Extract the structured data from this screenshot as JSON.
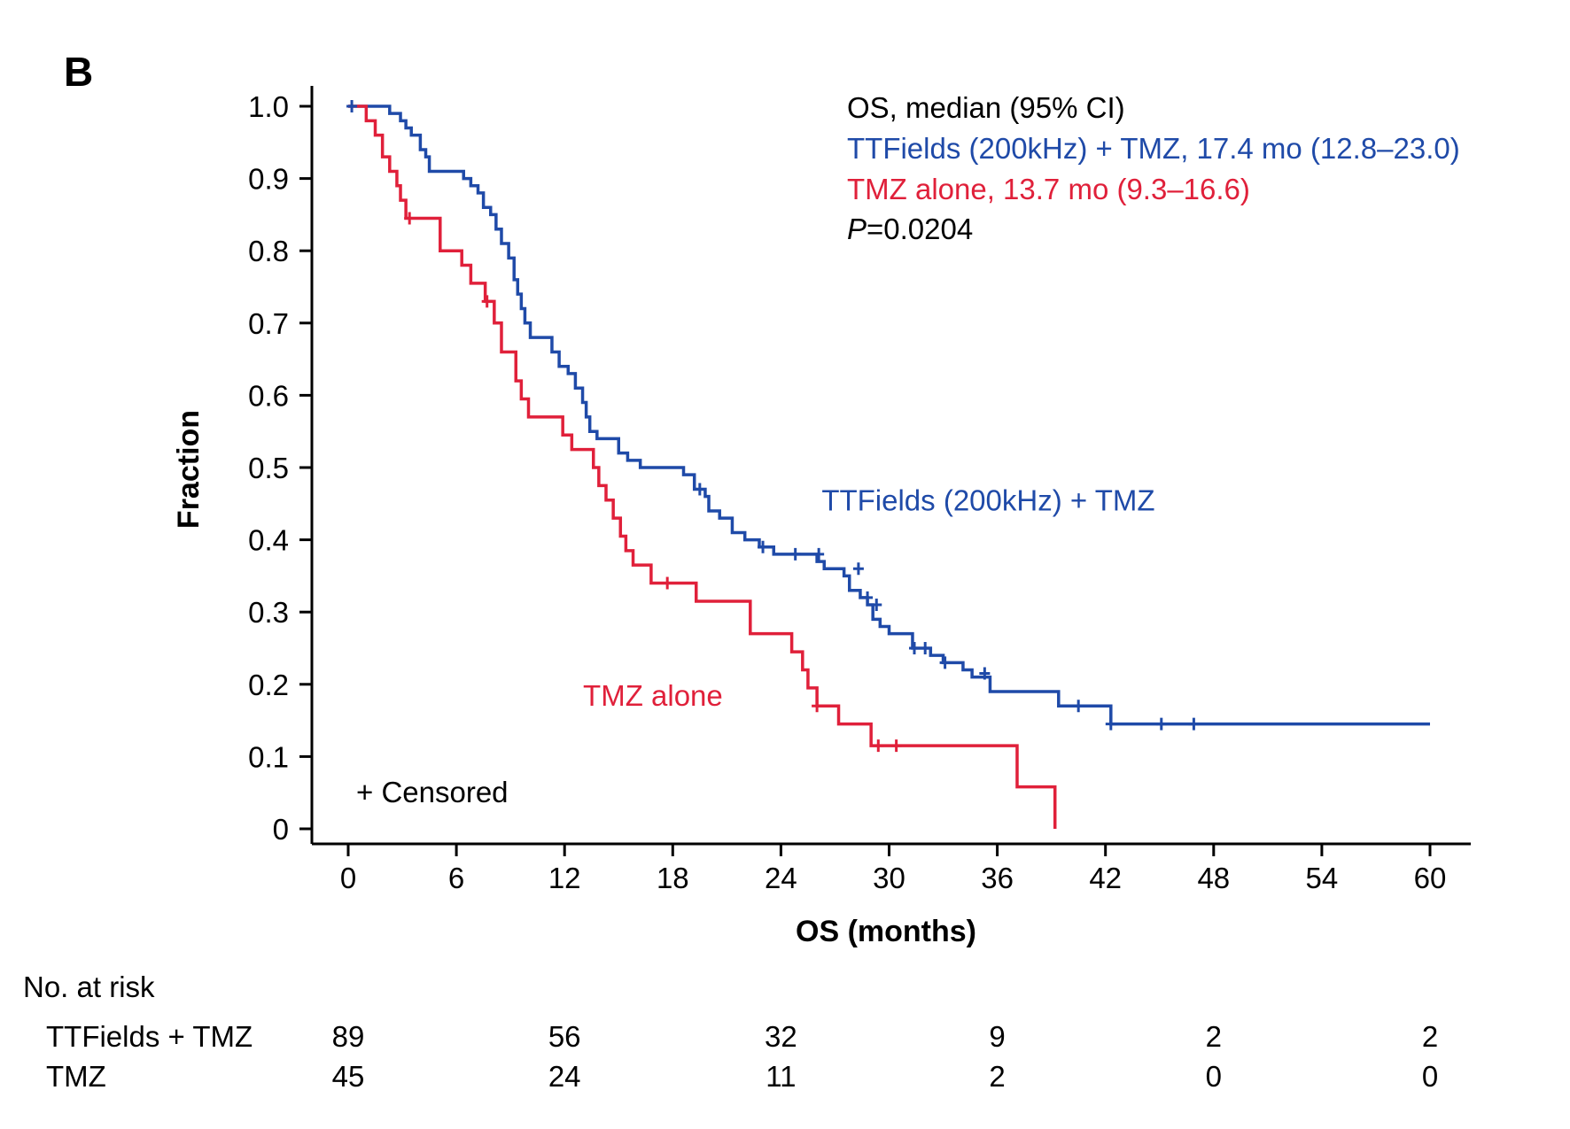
{
  "chart_data": {
    "type": "line",
    "panel_label": "B",
    "xlabel": "OS (months)",
    "ylabel": "Fraction",
    "xlim": [
      0,
      60
    ],
    "ylim": [
      0,
      1.0
    ],
    "xticks": [
      0,
      6,
      12,
      18,
      24,
      30,
      36,
      42,
      48,
      54,
      60
    ],
    "yticks": [
      0,
      0.1,
      0.2,
      0.3,
      0.4,
      0.5,
      0.6,
      0.7,
      0.8,
      0.9,
      1.0
    ],
    "ytick_labels": [
      "0",
      "0.1",
      "0.2",
      "0.3",
      "0.4",
      "0.5",
      "0.6",
      "0.7",
      "0.8",
      "0.9",
      "1.0"
    ],
    "grid": false,
    "legend_box": {
      "header": "OS, median (95% CI)",
      "entries": [
        {
          "text": "TTFields (200kHz) + TMZ, 17.4 mo (12.8–23.0)",
          "color": "#1f4aa8"
        },
        {
          "text": "TMZ alone, 13.7 mo (9.3–16.6)",
          "color": "#e0203a"
        }
      ],
      "pvalue_label": "P",
      "pvalue_text": "=0.0204"
    },
    "censored_note": "+ Censored",
    "series": [
      {
        "name": "TTFields (200kHz) + TMZ",
        "color": "#1f4aa8",
        "steps": [
          [
            0,
            1.0
          ],
          [
            2.3,
            0.99
          ],
          [
            2.9,
            0.98
          ],
          [
            3.2,
            0.97
          ],
          [
            3.5,
            0.96
          ],
          [
            4.0,
            0.94
          ],
          [
            4.3,
            0.93
          ],
          [
            4.5,
            0.91
          ],
          [
            6.4,
            0.9
          ],
          [
            6.8,
            0.89
          ],
          [
            7.2,
            0.88
          ],
          [
            7.5,
            0.86
          ],
          [
            7.9,
            0.85
          ],
          [
            8.2,
            0.83
          ],
          [
            8.5,
            0.81
          ],
          [
            8.9,
            0.79
          ],
          [
            9.2,
            0.76
          ],
          [
            9.4,
            0.74
          ],
          [
            9.6,
            0.72
          ],
          [
            9.8,
            0.7
          ],
          [
            10.1,
            0.68
          ],
          [
            11.3,
            0.66
          ],
          [
            11.7,
            0.64
          ],
          [
            12.2,
            0.63
          ],
          [
            12.6,
            0.61
          ],
          [
            13.0,
            0.59
          ],
          [
            13.2,
            0.57
          ],
          [
            13.4,
            0.55
          ],
          [
            13.8,
            0.54
          ],
          [
            15.0,
            0.52
          ],
          [
            15.5,
            0.51
          ],
          [
            16.2,
            0.5
          ],
          [
            18.6,
            0.49
          ],
          [
            19.2,
            0.47
          ],
          [
            19.8,
            0.46
          ],
          [
            20.0,
            0.44
          ],
          [
            20.6,
            0.43
          ],
          [
            21.3,
            0.41
          ],
          [
            22.0,
            0.4
          ],
          [
            22.8,
            0.39
          ],
          [
            23.6,
            0.38
          ],
          [
            26.0,
            0.37
          ],
          [
            26.4,
            0.36
          ],
          [
            27.5,
            0.35
          ],
          [
            27.8,
            0.33
          ],
          [
            28.4,
            0.32
          ],
          [
            28.8,
            0.31
          ],
          [
            29.1,
            0.29
          ],
          [
            29.5,
            0.28
          ],
          [
            30.0,
            0.27
          ],
          [
            31.3,
            0.25
          ],
          [
            32.3,
            0.24
          ],
          [
            33.0,
            0.23
          ],
          [
            34.1,
            0.22
          ],
          [
            34.6,
            0.21
          ],
          [
            35.6,
            0.19
          ],
          [
            39.4,
            0.17
          ],
          [
            42.3,
            0.145
          ],
          [
            60.0,
            0.145
          ]
        ],
        "censored": [
          [
            0.2,
            1.0
          ],
          [
            19.5,
            0.47
          ],
          [
            23.0,
            0.39
          ],
          [
            24.8,
            0.38
          ],
          [
            26.1,
            0.38
          ],
          [
            28.3,
            0.36
          ],
          [
            28.8,
            0.32
          ],
          [
            29.3,
            0.31
          ],
          [
            31.4,
            0.25
          ],
          [
            32.0,
            0.25
          ],
          [
            33.1,
            0.23
          ],
          [
            35.3,
            0.215
          ],
          [
            40.5,
            0.17
          ],
          [
            42.3,
            0.145
          ],
          [
            45.1,
            0.145
          ],
          [
            46.9,
            0.145
          ]
        ]
      },
      {
        "name": "TMZ alone",
        "color": "#e0203a",
        "steps": [
          [
            0,
            1.0
          ],
          [
            1.0,
            0.98
          ],
          [
            1.5,
            0.96
          ],
          [
            1.9,
            0.93
          ],
          [
            2.3,
            0.91
          ],
          [
            2.7,
            0.89
          ],
          [
            2.9,
            0.87
          ],
          [
            3.2,
            0.845
          ],
          [
            5.1,
            0.8
          ],
          [
            6.3,
            0.78
          ],
          [
            6.8,
            0.755
          ],
          [
            7.6,
            0.73
          ],
          [
            8.1,
            0.7
          ],
          [
            8.5,
            0.66
          ],
          [
            9.3,
            0.62
          ],
          [
            9.6,
            0.595
          ],
          [
            10.0,
            0.57
          ],
          [
            11.9,
            0.545
          ],
          [
            12.4,
            0.525
          ],
          [
            13.6,
            0.5
          ],
          [
            13.9,
            0.475
          ],
          [
            14.3,
            0.455
          ],
          [
            14.7,
            0.43
          ],
          [
            15.1,
            0.405
          ],
          [
            15.4,
            0.385
          ],
          [
            15.8,
            0.365
          ],
          [
            16.8,
            0.34
          ],
          [
            19.3,
            0.315
          ],
          [
            22.3,
            0.27
          ],
          [
            24.6,
            0.245
          ],
          [
            25.2,
            0.22
          ],
          [
            25.5,
            0.195
          ],
          [
            26.0,
            0.17
          ],
          [
            27.2,
            0.145
          ],
          [
            29.0,
            0.115
          ],
          [
            37.1,
            0.058
          ],
          [
            39.2,
            0.0
          ]
        ],
        "censored": [
          [
            3.4,
            0.845
          ],
          [
            7.7,
            0.73
          ],
          [
            17.7,
            0.34
          ],
          [
            26.0,
            0.17
          ],
          [
            29.4,
            0.115
          ],
          [
            30.4,
            0.115
          ]
        ]
      }
    ],
    "annotations": [
      {
        "text": "TTFields (200kHz) + TMZ",
        "color": "#1f4aa8",
        "x": 35.5,
        "y": 0.455
      },
      {
        "text": "TMZ alone",
        "color": "#e0203a",
        "x": 16.9,
        "y": 0.185
      }
    ],
    "risk_table": {
      "title": "No. at risk",
      "timepoints": [
        0,
        12,
        24,
        36,
        48,
        60
      ],
      "rows": [
        {
          "label": "TTFields + TMZ",
          "values": [
            "89",
            "56",
            "32",
            "9",
            "2",
            "2"
          ]
        },
        {
          "label": "TMZ",
          "values": [
            "45",
            "24",
            "11",
            "2",
            "0",
            "0"
          ]
        }
      ]
    }
  }
}
